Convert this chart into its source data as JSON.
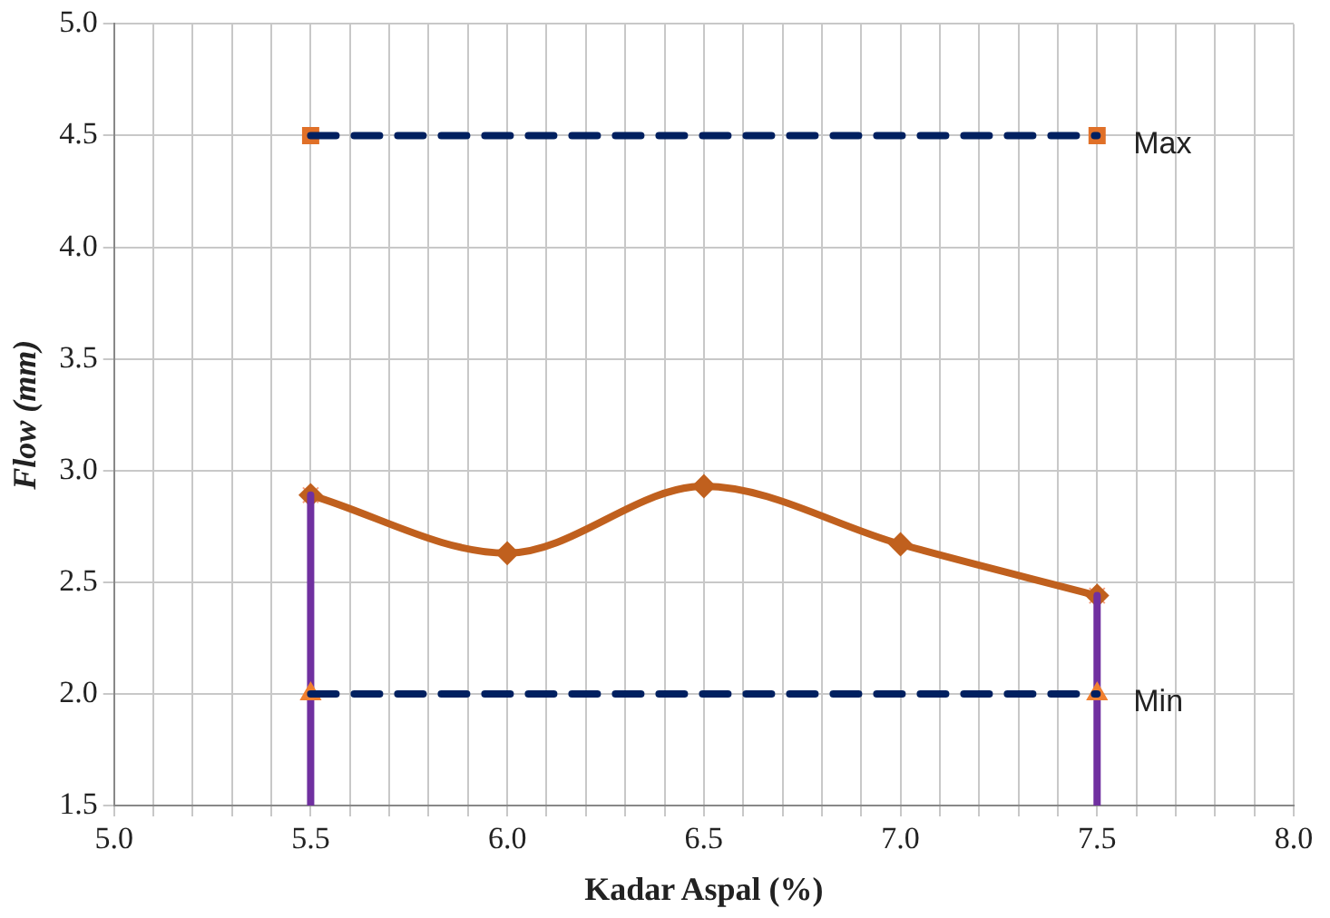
{
  "chart_data": {
    "type": "line",
    "xlabel": "Kadar Aspal (%)",
    "ylabel": "Flow (mm)",
    "xlim": [
      5.0,
      8.0
    ],
    "xticks": [
      {
        "value": 5,
        "label": "5.0"
      },
      {
        "value": 5.1,
        "label": null
      },
      {
        "value": 5.2,
        "label": null
      },
      {
        "value": 5.3,
        "label": null
      },
      {
        "value": 5.4,
        "label": null
      },
      5.5,
      {
        "value": 5.6,
        "label": null
      },
      {
        "value": 5.7,
        "label": null
      },
      {
        "value": 5.8,
        "label": null
      },
      {
        "value": 5.9,
        "label": null
      },
      {
        "value": 6,
        "label": "6.0"
      },
      {
        "value": 6.1,
        "label": null
      },
      {
        "value": 6.2,
        "label": null
      },
      {
        "value": 6.3,
        "label": null
      },
      {
        "value": 6.4,
        "label": null
      },
      6.5,
      {
        "value": 6.6,
        "label": null
      },
      {
        "value": 6.7,
        "label": null
      },
      {
        "value": 6.8,
        "label": null
      },
      {
        "value": 6.9,
        "label": null
      },
      {
        "value": 7,
        "label": "7.0"
      },
      {
        "value": 7.1,
        "label": null
      },
      {
        "value": 7.2,
        "label": null
      },
      {
        "value": 7.3,
        "label": null
      },
      {
        "value": 7.4,
        "label": null
      },
      7.5,
      {
        "value": 7.6,
        "label": null
      },
      {
        "value": 7.7,
        "label": null
      },
      {
        "value": 7.8,
        "label": null
      },
      {
        "value": 7.9,
        "label": null
      },
      {
        "value": 8,
        "label": "8.0"
      }
    ],
    "ylim": [
      1.5,
      5.0
    ],
    "yticks": [
      1.5,
      {
        "value": 2,
        "label": "2.0"
      },
      2.5,
      {
        "value": 3,
        "label": "3.0"
      },
      3.5,
      {
        "value": 4,
        "label": "4.0"
      },
      4.5,
      {
        "value": 5,
        "label": "5.0"
      }
    ],
    "grid": true,
    "legend": false,
    "series": [
      {
        "type": "line",
        "name": "Max",
        "color": "#002060",
        "x": [
          5.5,
          7.5
        ],
        "values": [
          4.5,
          4.5
        ],
        "marker": "none",
        "line_style": "dashed"
      },
      {
        "type": "scatter",
        "color": "#e07028",
        "x": [
          5.5,
          7.5
        ],
        "values": [
          4.5,
          4.5
        ],
        "marker": "square"
      },
      {
        "type": "line",
        "name": "Min",
        "color": "#002060",
        "x": [
          5.5,
          7.5
        ],
        "values": [
          2.0,
          2.0
        ],
        "marker": "none",
        "line_style": "dashed"
      },
      {
        "type": "scatter",
        "color": "#f08030",
        "x": [
          5.5,
          7.5
        ],
        "values": [
          2.0,
          2.0
        ],
        "marker": "triangle"
      },
      {
        "type": "line",
        "color": "#7030a0",
        "x": [
          5.5,
          5.5
        ],
        "values": [
          1.5,
          2.89
        ],
        "marker": "none",
        "line_style": "solid"
      },
      {
        "type": "line",
        "color": "#7030a0",
        "x": [
          7.5,
          7.5
        ],
        "values": [
          1.5,
          2.44
        ],
        "marker": "none",
        "line_style": "solid"
      },
      {
        "type": "line",
        "color": "#c0601e",
        "x": [
          5.5,
          6.0,
          6.5,
          7.0,
          7.5
        ],
        "values": [
          2.89,
          2.63,
          2.93,
          2.67,
          2.44
        ],
        "marker": "diamond",
        "line_style": "solid"
      },
      {
        "type": "scatter",
        "color": "#f4a080",
        "x": [
          5.5,
          7.5
        ],
        "values": [
          2.89,
          2.44
        ],
        "marker": "cross"
      }
    ]
  }
}
